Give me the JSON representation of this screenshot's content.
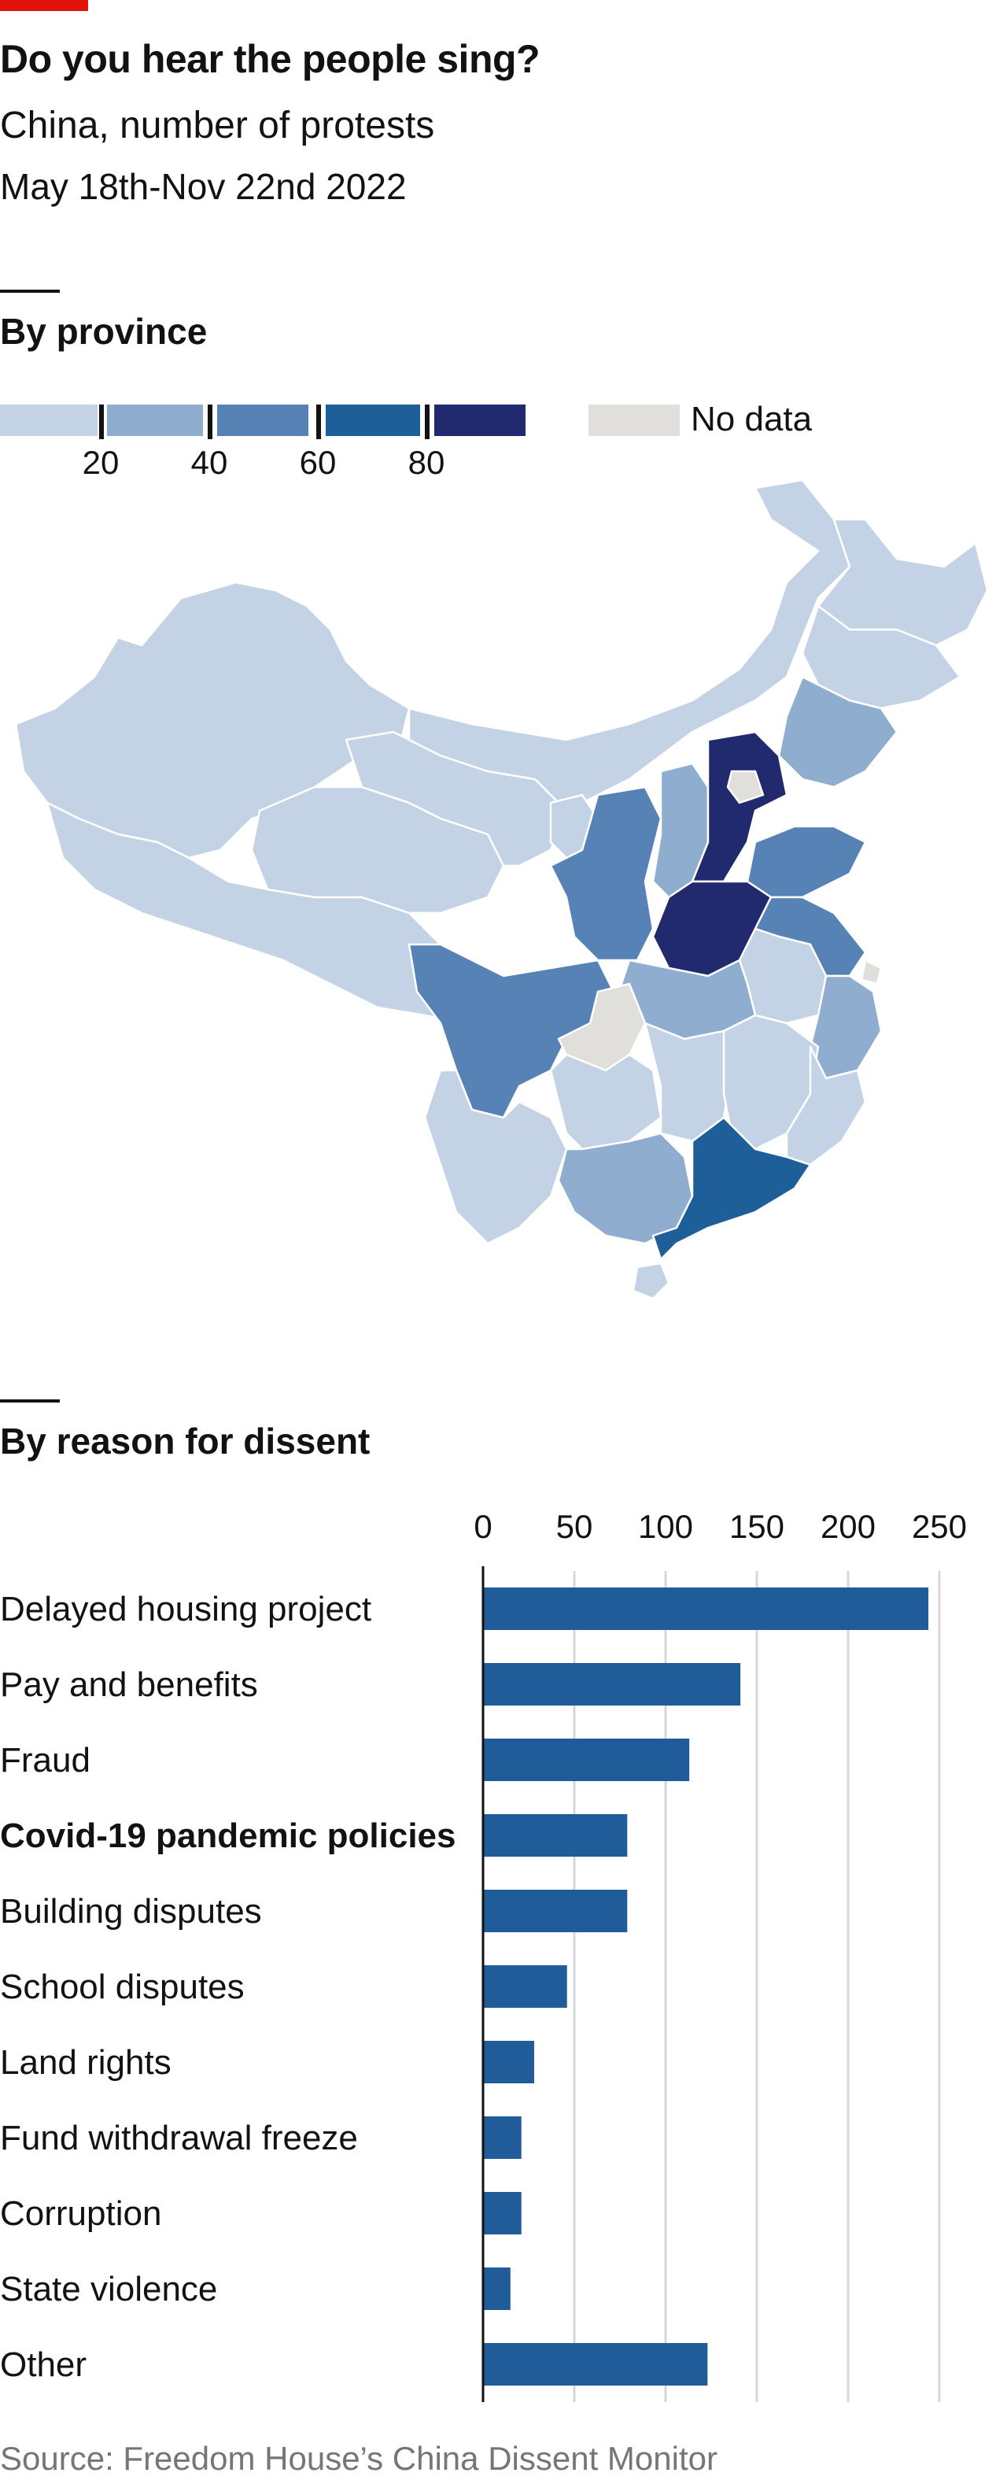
{
  "header": {
    "title": "Do you hear the people sing?",
    "subtitle": "China, number of protests",
    "dates": "May 18th-Nov 22nd 2022"
  },
  "map_section": {
    "heading": "By province",
    "legend": {
      "thresholds": [
        "20",
        "40",
        "60",
        "80"
      ],
      "colors": [
        "#c3d3e5",
        "#8eadcf",
        "#5682b5",
        "#1e5f99",
        "#212a6e"
      ],
      "nodata_color": "#e1dfdb",
      "nodata_label": "No data"
    }
  },
  "chart_data": {
    "type": "bar",
    "title": "By reason for dissent",
    "orientation": "horizontal",
    "categories": [
      "Delayed housing project",
      "Pay and benefits",
      "Fraud",
      "Covid-19 pandemic policies",
      "Building disputes",
      "School disputes",
      "Land rights",
      "Fund withdrawal freeze",
      "Corruption",
      "State violence",
      "Other"
    ],
    "values": [
      244,
      141,
      113,
      79,
      79,
      46,
      28,
      21,
      21,
      15,
      123
    ],
    "highlight": "Covid-19 pandemic policies",
    "xticks": [
      "0",
      "50",
      "100",
      "150",
      "200",
      "250"
    ],
    "xlim": [
      0,
      250
    ],
    "grid": true,
    "bar_color": "#1f5c99"
  },
  "footer": {
    "source": "Source: Freedom House’s China Dissent Monitor"
  }
}
